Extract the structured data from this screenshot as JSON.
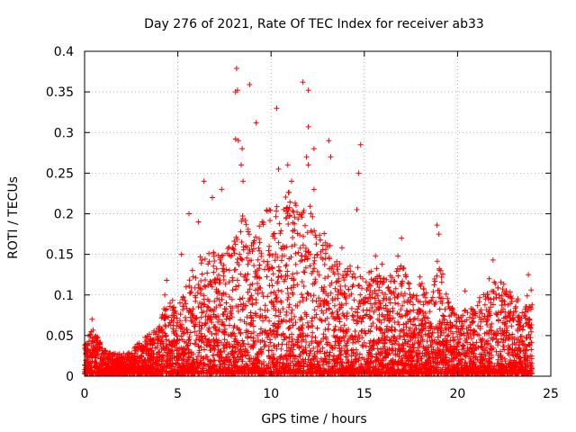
{
  "chart_data": {
    "type": "scatter",
    "title": "Day 276 of 2021, Rate Of TEC Index for receiver ab33",
    "xlabel": "GPS time / hours",
    "ylabel": "ROTI / TECUs",
    "xlim": [
      0,
      25
    ],
    "ylim": [
      0,
      0.4
    ],
    "x_ticks": [
      "0",
      "5",
      "10",
      "15",
      "20",
      "25"
    ],
    "y_ticks": [
      "0",
      "0.05",
      "0.1",
      "0.15",
      "0.2",
      "0.25",
      "0.3",
      "0.35",
      "0.4"
    ],
    "grid": true,
    "marker": "+",
    "series_color": "#ff0000",
    "envelope": {
      "x": [
        0,
        0.5,
        1,
        1.5,
        2,
        2.5,
        3,
        3.5,
        4,
        4.5,
        5,
        5.5,
        6,
        6.5,
        7,
        7.5,
        8,
        8.5,
        9,
        9.5,
        10,
        10.5,
        11,
        11.5,
        12,
        12.5,
        13,
        13.5,
        14,
        14.5,
        15,
        15.5,
        16,
        16.5,
        17,
        17.5,
        18,
        18.5,
        19,
        19.5,
        20,
        20.5,
        21,
        21.5,
        22,
        22.5,
        23,
        23.5,
        24
      ],
      "y": [
        0.035,
        0.06,
        0.03,
        0.025,
        0.025,
        0.03,
        0.04,
        0.05,
        0.06,
        0.1,
        0.08,
        0.12,
        0.14,
        0.15,
        0.16,
        0.15,
        0.17,
        0.2,
        0.16,
        0.19,
        0.22,
        0.2,
        0.24,
        0.2,
        0.22,
        0.17,
        0.18,
        0.14,
        0.13,
        0.14,
        0.12,
        0.13,
        0.14,
        0.12,
        0.14,
        0.11,
        0.12,
        0.1,
        0.15,
        0.09,
        0.07,
        0.08,
        0.09,
        0.1,
        0.12,
        0.11,
        0.1,
        0.09,
        0.11
      ]
    },
    "outliers": [
      [
        8.15,
        0.379
      ],
      [
        8.2,
        0.352
      ],
      [
        8.1,
        0.35
      ],
      [
        8.85,
        0.359
      ],
      [
        11.7,
        0.362
      ],
      [
        12.0,
        0.352
      ],
      [
        9.2,
        0.312
      ],
      [
        12.0,
        0.307
      ],
      [
        13.1,
        0.29
      ],
      [
        14.8,
        0.285
      ],
      [
        8.1,
        0.292
      ],
      [
        8.25,
        0.29
      ],
      [
        8.45,
        0.28
      ],
      [
        8.4,
        0.26
      ],
      [
        12.3,
        0.28
      ],
      [
        11.9,
        0.27
      ],
      [
        12.0,
        0.26
      ],
      [
        13.2,
        0.27
      ],
      [
        14.7,
        0.25
      ],
      [
        10.9,
        0.26
      ],
      [
        10.4,
        0.255
      ],
      [
        8.5,
        0.24
      ],
      [
        11.1,
        0.24
      ],
      [
        12.3,
        0.23
      ],
      [
        6.4,
        0.24
      ],
      [
        14.6,
        0.205
      ],
      [
        6.85,
        0.22
      ],
      [
        7.35,
        0.23
      ],
      [
        5.6,
        0.2
      ],
      [
        6.1,
        0.19
      ],
      [
        18.9,
        0.186
      ],
      [
        17.0,
        0.17
      ],
      [
        19.0,
        0.175
      ],
      [
        15.6,
        0.148
      ],
      [
        16.8,
        0.148
      ],
      [
        21.9,
        0.143
      ],
      [
        21.7,
        0.12
      ],
      [
        20.4,
        0.105
      ],
      [
        23.8,
        0.125
      ],
      [
        4.4,
        0.118
      ],
      [
        4.3,
        0.1
      ],
      [
        0.4,
        0.07
      ],
      [
        5.2,
        0.15
      ],
      [
        13.8,
        0.158
      ],
      [
        10.3,
        0.33
      ]
    ]
  }
}
